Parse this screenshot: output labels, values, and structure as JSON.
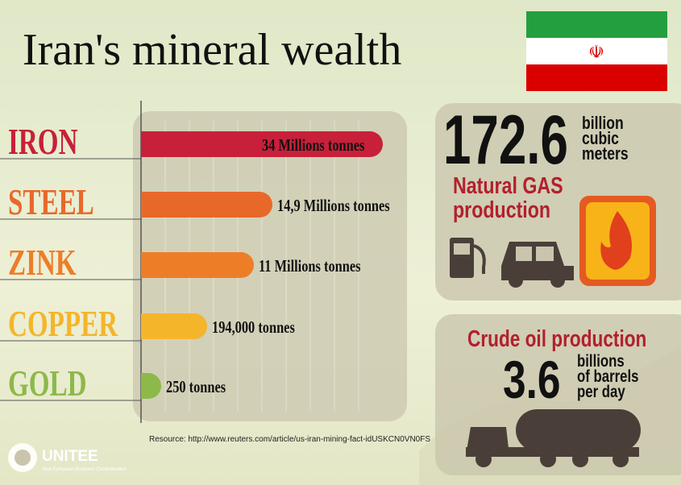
{
  "header": {
    "title": "Iran's mineral wealth"
  },
  "minerals": [
    {
      "name": "IRON",
      "amount": "34 Millions tonnes"
    },
    {
      "name": "STEEL",
      "amount": "14,9 Millions tonnes"
    },
    {
      "name": "ZINK",
      "amount": "11 Millions tonnes"
    },
    {
      "name": "COPPER",
      "amount": "194,000 tonnes"
    },
    {
      "name": "GOLD",
      "amount": "250 tonnes"
    }
  ],
  "source": "Resource: http://www.reuters.com/article/us-iran-mining-fact-idUSKCN0VN0FS",
  "gas": {
    "number": "172.6",
    "unit": [
      "billion",
      "cubic",
      "meters"
    ],
    "label": [
      "Natural GAS",
      "production"
    ]
  },
  "oil": {
    "label": "Crude oil production",
    "number": "3.6",
    "unit": [
      "billions",
      "of barrels",
      "per day"
    ]
  },
  "logo": {
    "name": "UNITEE",
    "subtitle": "New European Business Confederation"
  }
}
